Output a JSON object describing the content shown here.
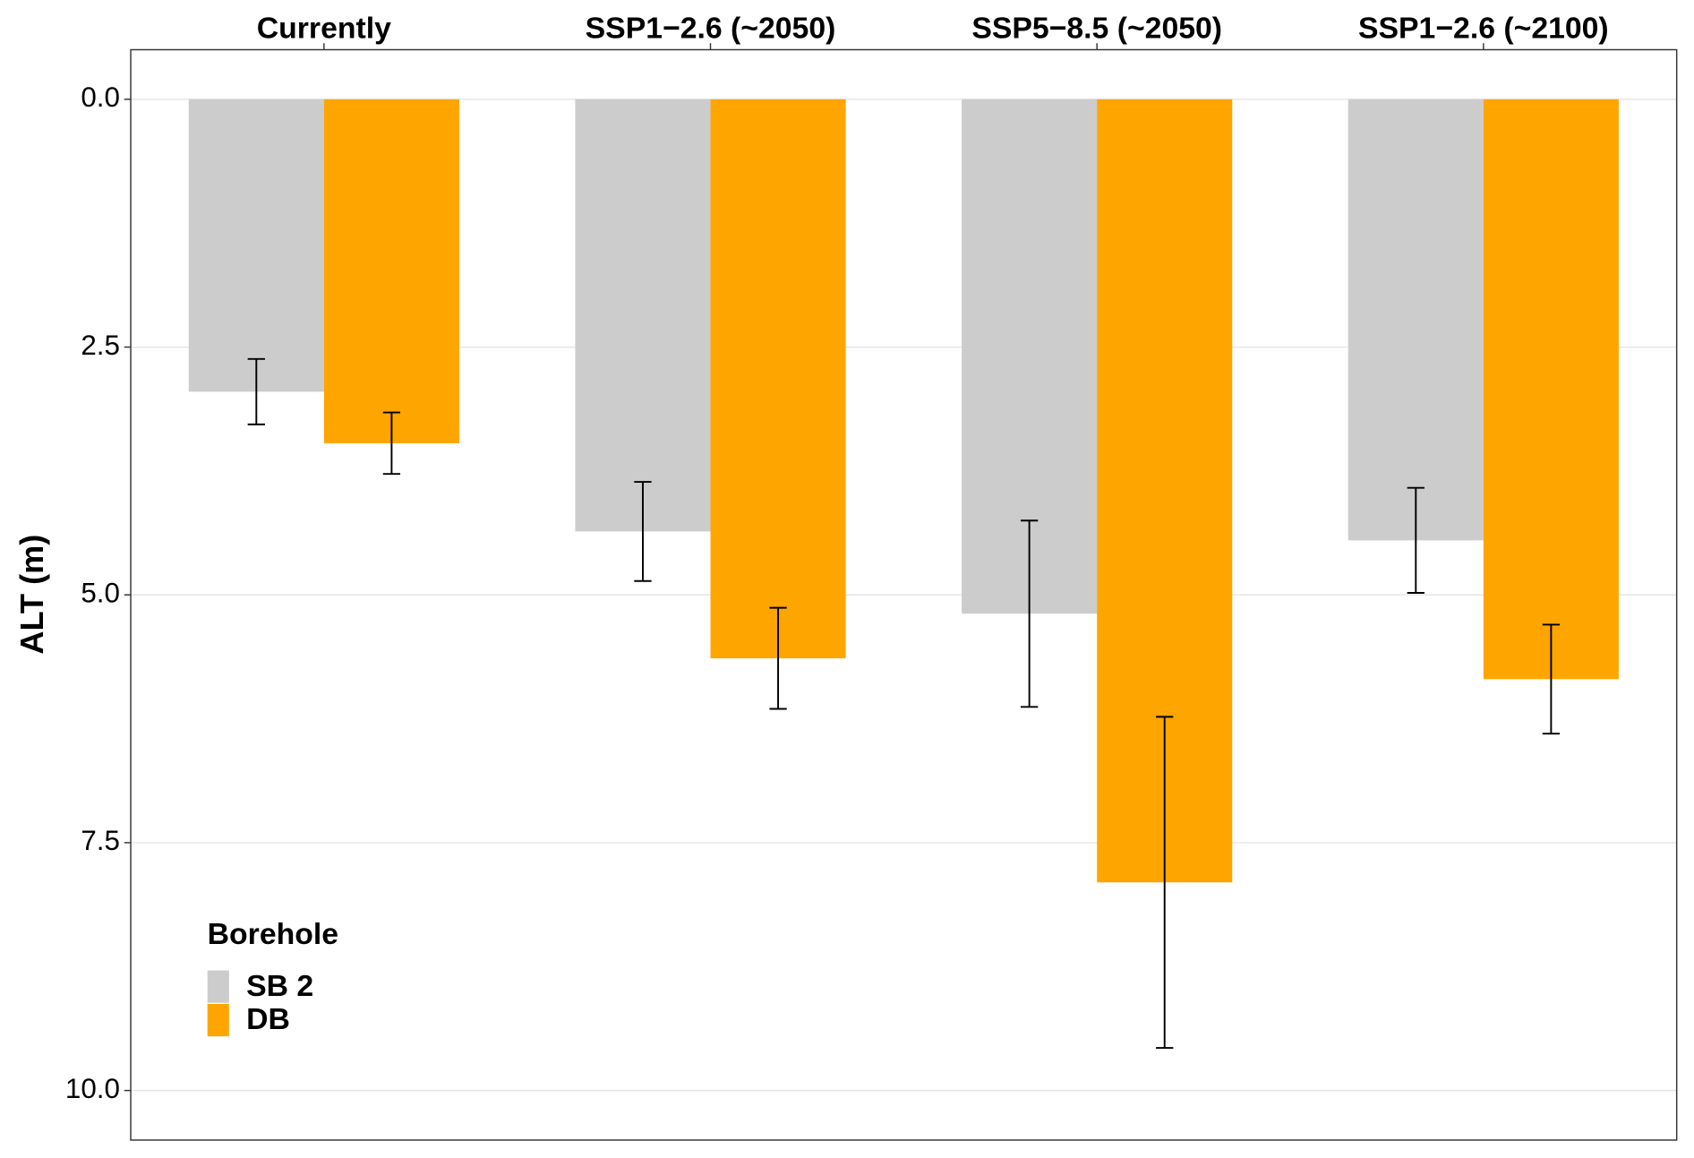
{
  "chart_data": {
    "type": "bar",
    "y_label": "ALT (m)",
    "categories": [
      "Currently",
      "SSP1−2.6 (~2050)",
      "SSP5−8.5 (~2050)",
      "SSP1−2.6 (~2100)"
    ],
    "series": [
      {
        "name": "SB 2",
        "color": "#cccccc",
        "values": [
          2.95,
          4.36,
          5.19,
          4.45
        ],
        "errors": [
          0.33,
          0.5,
          0.94,
          0.53
        ]
      },
      {
        "name": "DB",
        "color": "#ffa500",
        "values": [
          3.47,
          5.64,
          7.9,
          5.85
        ],
        "errors": [
          0.31,
          0.51,
          1.67,
          0.55
        ]
      }
    ],
    "legend_title": "Borehole",
    "legend_position": "bottom-left",
    "ylim": [
      -0.5,
      10.5
    ],
    "y_inverted": true,
    "yticks": [
      {
        "value": 0,
        "label": "0.0"
      },
      {
        "value": 2.5,
        "label": "2.5"
      },
      {
        "value": 5,
        "label": "5.0"
      },
      {
        "value": 7.5,
        "label": "7.5"
      },
      {
        "value": 10,
        "label": "10.0"
      }
    ],
    "grid": true
  }
}
